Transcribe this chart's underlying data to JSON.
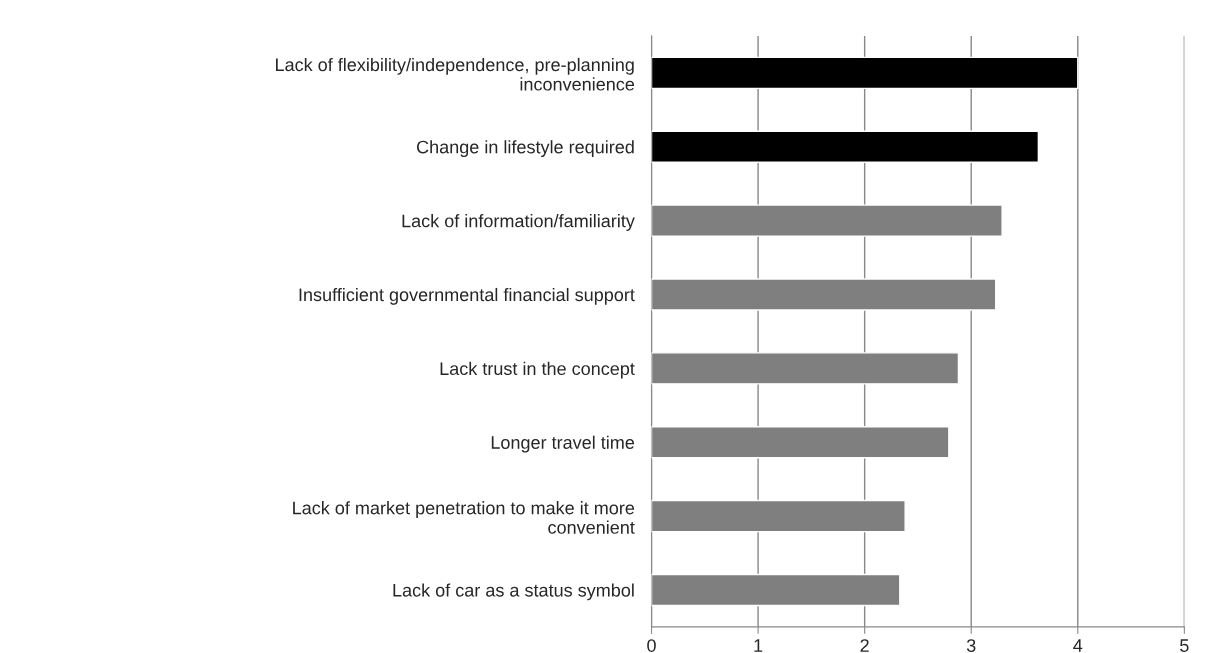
{
  "chart_data": {
    "type": "bar",
    "orientation": "horizontal",
    "categories": [
      "Lack of flexibility/independence, pre-planning\ninconvenience",
      "Change in lifestyle required",
      "Lack of information/familiarity",
      "Insufficient governmental financial support",
      "Lack trust in the concept",
      "Longer travel time",
      "Lack of market penetration to make it more\nconvenient",
      "Lack of car as a status symbol"
    ],
    "values": [
      4.0,
      3.63,
      3.29,
      3.23,
      2.88,
      2.79,
      2.38,
      2.33
    ],
    "colors": [
      "#000000",
      "#000000",
      "#7f7f7f",
      "#7f7f7f",
      "#7f7f7f",
      "#7f7f7f",
      "#7f7f7f",
      "#7f7f7f"
    ],
    "xlim": [
      0,
      5
    ],
    "xticks": [
      0,
      1,
      2,
      3,
      4,
      5
    ],
    "grid": "x",
    "legend": false
  }
}
